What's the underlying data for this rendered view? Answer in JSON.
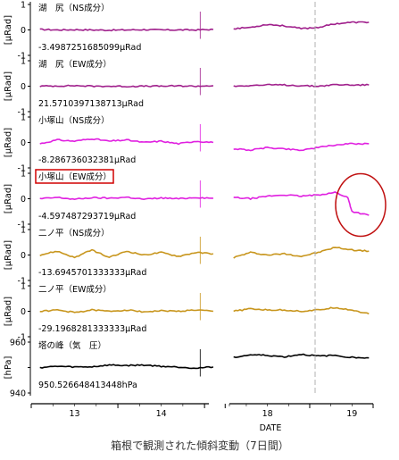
{
  "chart_data": {
    "type": "line",
    "caption": "箱根で観測された傾斜変動（7日間）",
    "xlabel": "DATE",
    "x_tick_labels_left": [
      "13",
      "14"
    ],
    "x_tick_labels_right": [
      "18",
      "19"
    ],
    "colors": {
      "magenta_dark": "#a0208c",
      "magenta": "#e020e0",
      "gold": "#c8961e",
      "black": "#000000",
      "highlight_box": "#d00000",
      "highlight_ellipse": "#c01010",
      "marker": "#b0b0b0"
    },
    "panels": [
      {
        "label": "湖　尻（NS成分）",
        "offset_text": "-3.4987251685099μRad",
        "ylabel": "[μRad]",
        "yticks": [
          "1",
          "0",
          "-1"
        ],
        "ylim": [
          -1,
          1
        ],
        "color_key": "magenta_dark",
        "left_series": {
          "x": [
            12.6,
            12.8,
            13.0,
            13.2,
            13.4,
            13.6,
            13.8,
            14.0,
            14.2,
            14.4,
            14.6
          ],
          "values": [
            0.02,
            0.0,
            0.01,
            0.0,
            -0.01,
            0.0,
            0.01,
            0.0,
            0.0,
            0.0,
            0.02
          ]
        },
        "right_series": {
          "x": [
            17.6,
            17.8,
            18.0,
            18.2,
            18.4,
            18.6,
            18.8,
            19.0,
            19.2
          ],
          "values": [
            0.05,
            0.1,
            0.22,
            0.16,
            0.05,
            0.1,
            0.24,
            0.3,
            0.3
          ]
        }
      },
      {
        "label": "湖　尻（EW成分）",
        "offset_text": "21.5710397138713μRad",
        "ylabel": "[μRad]",
        "yticks": [
          "1",
          "0",
          "-1"
        ],
        "ylim": [
          -1,
          1
        ],
        "color_key": "magenta_dark",
        "left_series": {
          "x": [
            12.6,
            12.8,
            13.0,
            13.2,
            13.4,
            13.6,
            13.8,
            14.0,
            14.2,
            14.4,
            14.6
          ],
          "values": [
            0.0,
            0.01,
            0.02,
            0.0,
            0.0,
            -0.01,
            0.0,
            0.0,
            0.01,
            0.0,
            0.02
          ]
        },
        "right_series": {
          "x": [
            17.6,
            17.8,
            18.0,
            18.2,
            18.4,
            18.6,
            18.8,
            19.0,
            19.2
          ],
          "values": [
            0.0,
            0.03,
            0.05,
            0.05,
            0.02,
            0.0,
            0.06,
            0.05,
            0.05
          ]
        }
      },
      {
        "label": "小塚山（NS成分）",
        "offset_text": "-8.286736032381μRad",
        "ylabel": "[μRad]",
        "yticks": [
          "1",
          "0",
          "-1"
        ],
        "ylim": [
          -1,
          1
        ],
        "color_key": "magenta",
        "left_series": {
          "x": [
            12.6,
            12.8,
            13.0,
            13.2,
            13.4,
            13.6,
            13.8,
            14.0,
            14.2,
            14.4,
            14.6
          ],
          "values": [
            -0.05,
            0.1,
            0.05,
            0.15,
            0.05,
            0.1,
            0.0,
            0.05,
            -0.05,
            0.05,
            0.0
          ]
        },
        "right_series": {
          "x": [
            17.6,
            17.8,
            18.0,
            18.2,
            18.4,
            18.6,
            18.8,
            19.0,
            19.2
          ],
          "values": [
            -0.25,
            -0.3,
            -0.2,
            -0.25,
            -0.3,
            -0.2,
            -0.1,
            -0.05,
            -0.05
          ]
        }
      },
      {
        "label": "小塚山（EW成分）",
        "offset_text": "-4.597487293719μRad",
        "ylabel": "[μRad]",
        "yticks": [
          "1",
          "0",
          "-1"
        ],
        "ylim": [
          -1,
          1
        ],
        "color_key": "magenta",
        "highlight_label": true,
        "highlight_region": true,
        "left_series": {
          "x": [
            12.6,
            12.8,
            13.0,
            13.2,
            13.4,
            13.6,
            13.8,
            14.0,
            14.2,
            14.4,
            14.6
          ],
          "values": [
            0.0,
            0.05,
            -0.02,
            0.04,
            0.02,
            0.06,
            -0.02,
            0.03,
            0.0,
            0.05,
            0.02
          ]
        },
        "right_series": {
          "x": [
            17.6,
            17.8,
            18.0,
            18.2,
            18.4,
            18.6,
            18.8,
            18.95,
            19.0,
            19.2
          ],
          "values": [
            0.05,
            0.0,
            0.1,
            0.15,
            0.1,
            0.15,
            0.25,
            0.05,
            -0.5,
            -0.65
          ]
        }
      },
      {
        "label": "二ノ平（NS成分）",
        "offset_text": "-13.6945701333333μRad",
        "ylabel": "[μRad]",
        "yticks": [
          "1",
          "0",
          "-1"
        ],
        "ylim": [
          -1,
          1
        ],
        "color_key": "gold",
        "left_series": {
          "x": [
            12.6,
            12.8,
            13.0,
            13.2,
            13.4,
            13.6,
            13.8,
            14.0,
            14.2,
            14.4,
            14.6
          ],
          "values": [
            0.0,
            0.15,
            -0.1,
            0.2,
            -0.1,
            0.15,
            0.0,
            0.1,
            -0.05,
            0.1,
            0.05
          ]
        },
        "right_series": {
          "x": [
            17.6,
            17.8,
            18.0,
            18.2,
            18.4,
            18.6,
            18.8,
            19.0,
            19.2
          ],
          "values": [
            -0.1,
            0.1,
            0.0,
            0.05,
            -0.05,
            0.1,
            0.3,
            0.2,
            0.15
          ]
        }
      },
      {
        "label": "二ノ平（EW成分）",
        "offset_text": "-29.1968281333333μRad",
        "ylabel": "[μRad]",
        "yticks": [
          "1",
          "0",
          "-1"
        ],
        "ylim": [
          -1,
          1
        ],
        "color_key": "gold",
        "left_series": {
          "x": [
            12.6,
            12.8,
            13.0,
            13.2,
            13.4,
            13.6,
            13.8,
            14.0,
            14.2,
            14.4,
            14.6
          ],
          "values": [
            0.0,
            0.05,
            -0.05,
            0.05,
            0.0,
            0.05,
            -0.02,
            0.02,
            0.0,
            0.05,
            0.0
          ]
        },
        "right_series": {
          "x": [
            17.6,
            17.8,
            18.0,
            18.2,
            18.4,
            18.6,
            18.8,
            19.0,
            19.2
          ],
          "values": [
            0.0,
            0.1,
            0.05,
            0.05,
            0.0,
            0.05,
            0.15,
            0.05,
            -0.1
          ]
        }
      },
      {
        "label": "塔の峰（気　圧）",
        "offset_text": "950.526648413448hPa",
        "ylabel": "[hPa]",
        "yticks": [
          "960",
          "",
          "940"
        ],
        "ylim": [
          940,
          960
        ],
        "color_key": "black",
        "left_series": {
          "x": [
            12.6,
            12.8,
            13.0,
            13.2,
            13.4,
            13.6,
            13.8,
            14.0,
            14.2,
            14.4,
            14.6
          ],
          "values": [
            950.0,
            950.5,
            950.2,
            950.3,
            951.0,
            950.8,
            951.0,
            950.5,
            950.2,
            949.8,
            950.2
          ]
        },
        "right_series": {
          "x": [
            17.6,
            17.8,
            18.0,
            18.2,
            18.4,
            18.6,
            18.8,
            19.0,
            19.2
          ],
          "values": [
            954.0,
            955.0,
            954.8,
            954.2,
            955.2,
            954.5,
            954.8,
            954.0,
            953.8
          ]
        }
      }
    ]
  }
}
